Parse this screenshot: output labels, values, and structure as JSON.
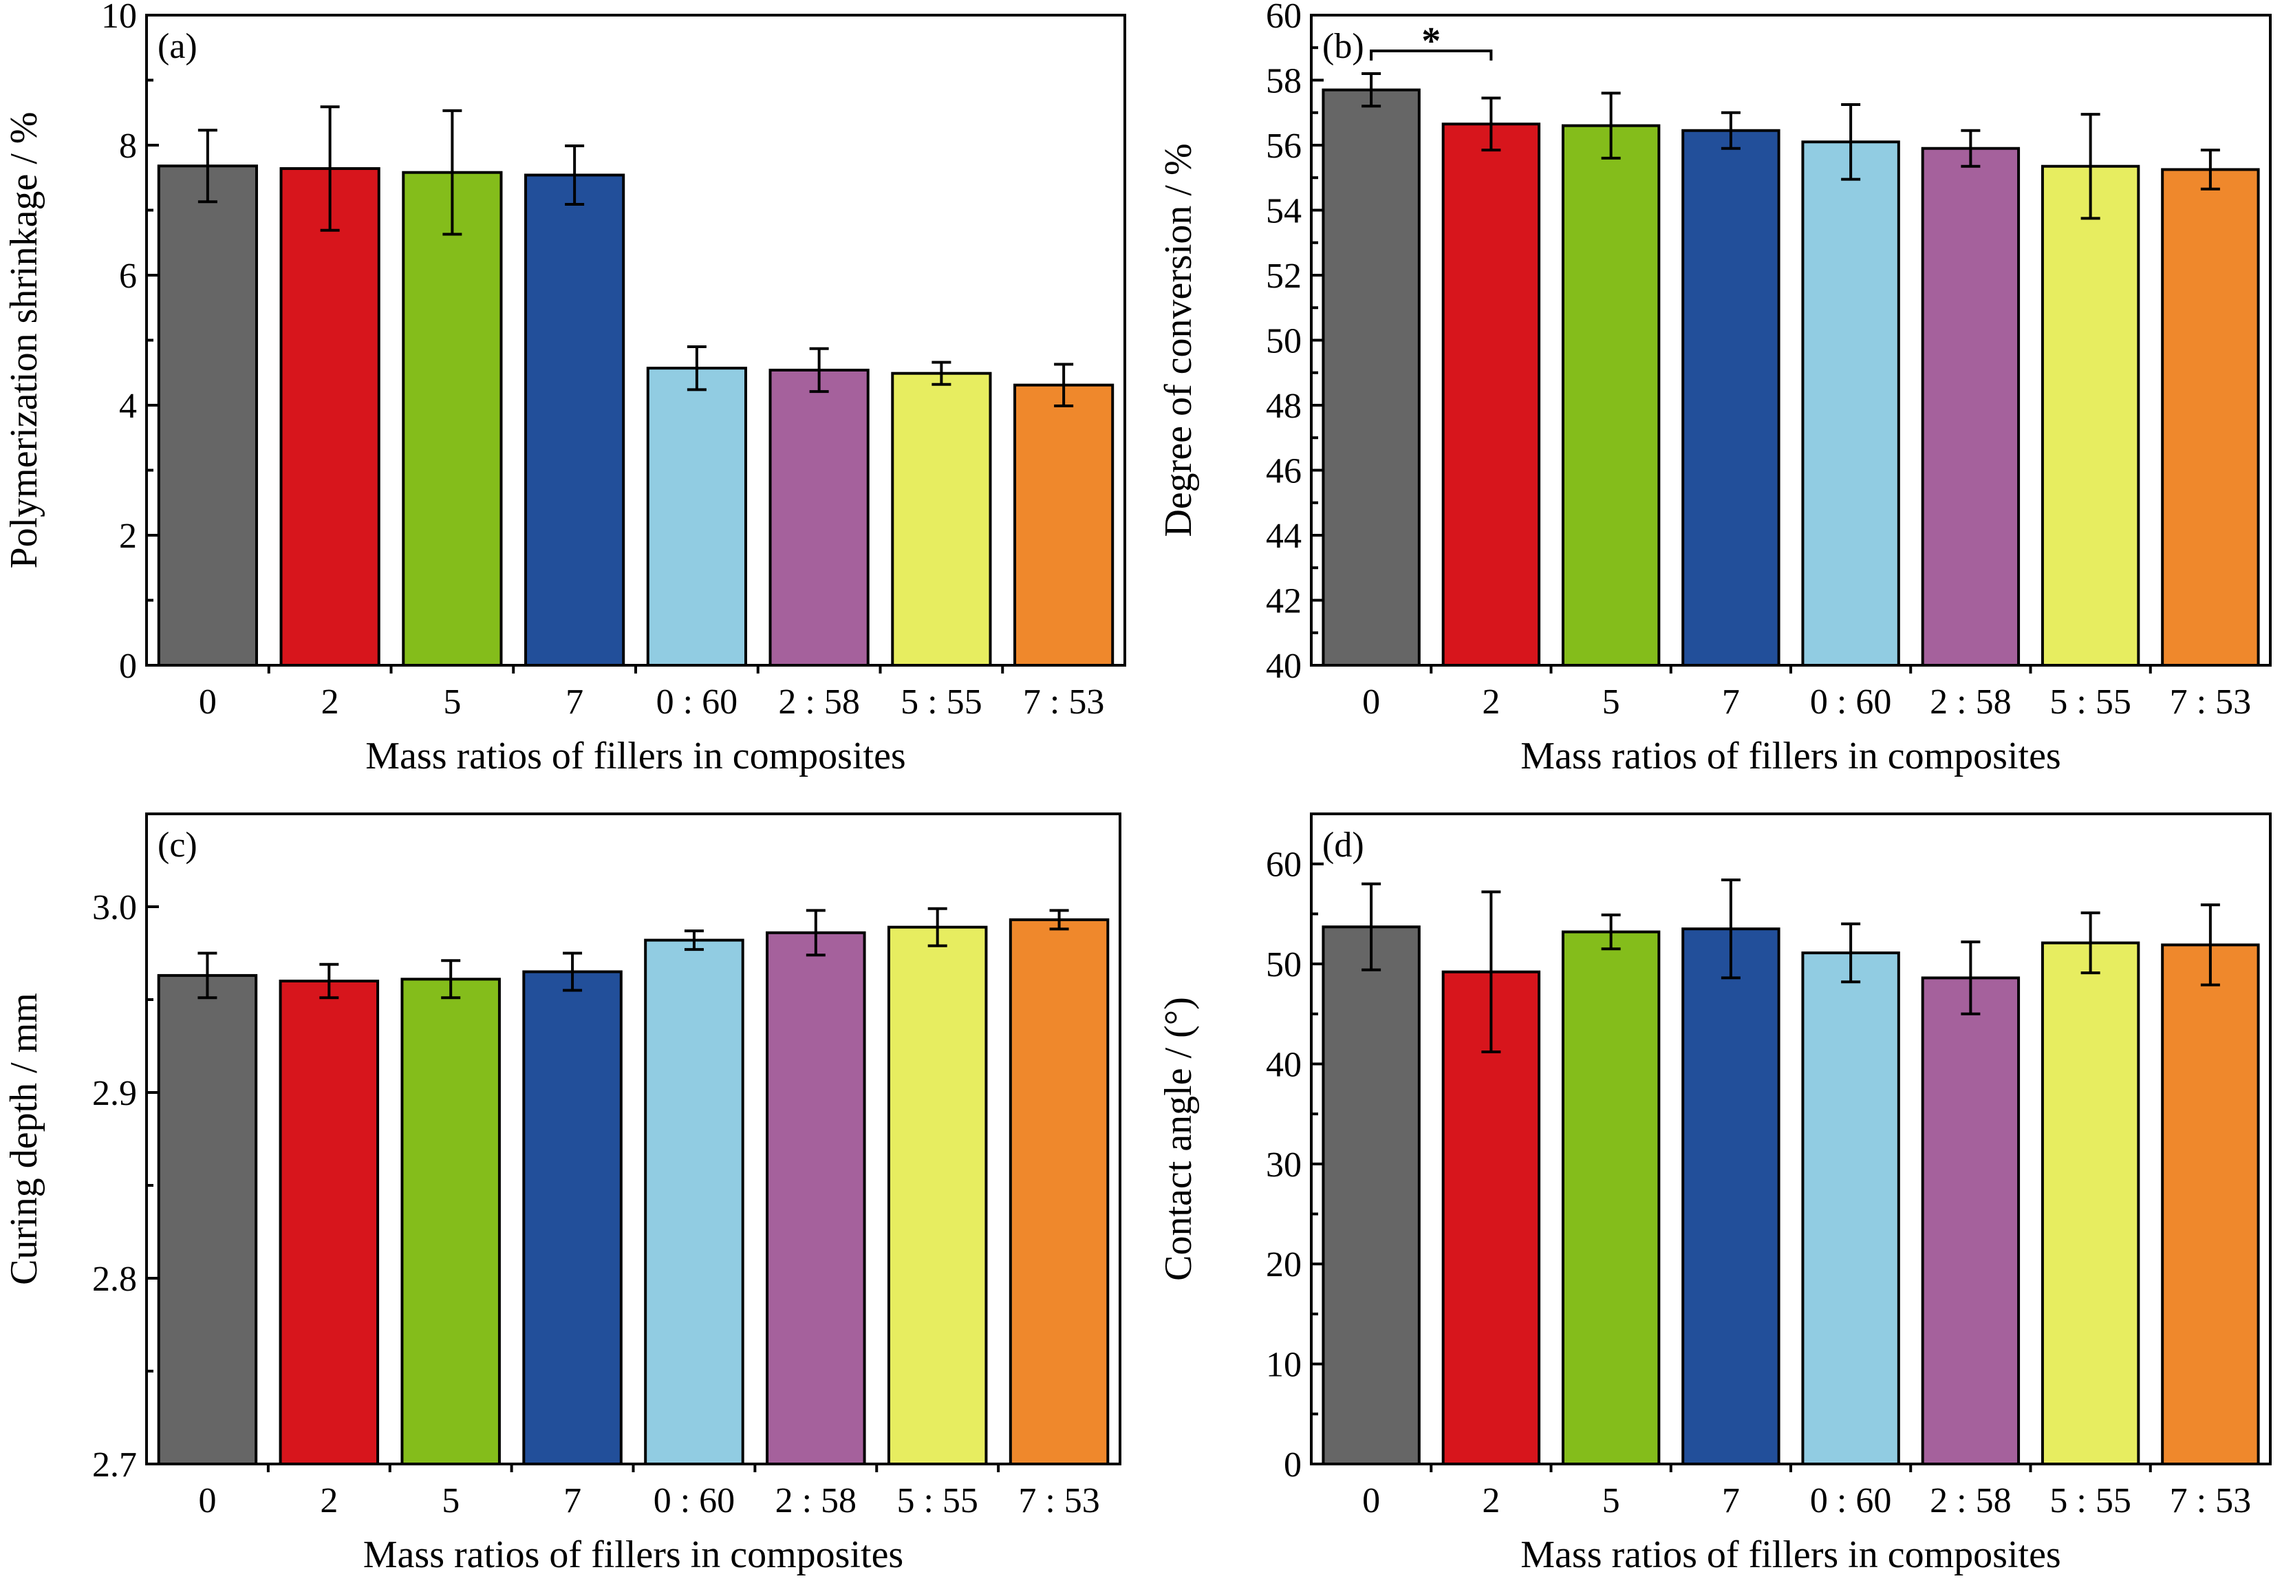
{
  "colors": [
    "#666666",
    "#d7151c",
    "#84bd1b",
    "#224f9a",
    "#91cce2",
    "#a5619c",
    "#e7ed60",
    "#ef882c"
  ],
  "chart_data": [
    {
      "type": "bar",
      "panel_label": "(a)",
      "categories": [
        "0",
        "2",
        "5",
        "7",
        "0 : 60",
        "2 : 58",
        "5 : 55",
        "7 : 53"
      ],
      "values": [
        7.68,
        7.64,
        7.58,
        7.54,
        4.57,
        4.54,
        4.49,
        4.31
      ],
      "errors": [
        0.55,
        0.95,
        0.95,
        0.45,
        0.33,
        0.33,
        0.17,
        0.32
      ],
      "xlabel": "Mass ratios of fillers in composites",
      "ylabel": "Polymerization shrinkage / %",
      "ylim": [
        0,
        10
      ],
      "yticks": [
        0,
        2,
        4,
        6,
        8,
        10
      ],
      "ytick_labels": [
        "0",
        "2",
        "4",
        "6",
        "8",
        "10"
      ],
      "yminor": [
        1,
        3,
        5,
        7,
        9
      ]
    },
    {
      "type": "bar",
      "panel_label": "(b)",
      "categories": [
        "0",
        "2",
        "5",
        "7",
        "0 : 60",
        "2 : 58",
        "5 : 55",
        "7 : 53"
      ],
      "values": [
        57.7,
        56.65,
        56.6,
        56.45,
        56.1,
        55.9,
        55.35,
        55.25
      ],
      "errors": [
        0.5,
        0.8,
        1.0,
        0.55,
        1.15,
        0.55,
        1.6,
        0.6
      ],
      "xlabel": "Mass ratios of fillers in composites",
      "ylabel": "Degree of conversion / %",
      "ylim": [
        40,
        60
      ],
      "yticks": [
        40,
        42,
        44,
        46,
        48,
        50,
        52,
        54,
        56,
        58,
        60
      ],
      "ytick_labels": [
        "40",
        "42",
        "44",
        "46",
        "48",
        "50",
        "52",
        "54",
        "56",
        "58",
        "60"
      ],
      "yminor": [
        41,
        43,
        45,
        47,
        49,
        51,
        53,
        55,
        57,
        59
      ],
      "annotation": {
        "text": "*",
        "from_index": 0,
        "to_index": 1,
        "y": 58.9
      }
    },
    {
      "type": "bar",
      "panel_label": "(c)",
      "categories": [
        "0",
        "2",
        "5",
        "7",
        "0 : 60",
        "2 : 58",
        "5 : 55",
        "7 : 53"
      ],
      "values": [
        2.963,
        2.96,
        2.961,
        2.965,
        2.982,
        2.986,
        2.989,
        2.993
      ],
      "errors": [
        0.012,
        0.009,
        0.01,
        0.01,
        0.005,
        0.012,
        0.01,
        0.005
      ],
      "xlabel": "Mass ratios of fillers in composites",
      "ylabel": "Curing depth / mm",
      "ylim": [
        2.7,
        3.05
      ],
      "yticks": [
        2.7,
        2.8,
        2.9,
        3.0
      ],
      "ytick_labels": [
        "2.7",
        "2.8",
        "2.9",
        "3.0"
      ],
      "yminor": [
        2.75,
        2.85,
        2.95
      ]
    },
    {
      "type": "bar",
      "panel_label": "(d)",
      "categories": [
        "0",
        "2",
        "5",
        "7",
        "0 : 60",
        "2 : 58",
        "5 : 55",
        "7 : 53"
      ],
      "values": [
        53.7,
        49.2,
        53.2,
        53.5,
        51.1,
        48.6,
        52.1,
        51.9
      ],
      "errors": [
        4.3,
        8.0,
        1.7,
        4.9,
        2.9,
        3.6,
        3.0,
        4.0
      ],
      "xlabel": "Mass ratios of fillers in composites",
      "ylabel": "Contact angle / (°)",
      "ylim": [
        0,
        65
      ],
      "yticks": [
        0,
        10,
        20,
        30,
        40,
        50,
        60
      ],
      "ytick_labels": [
        "0",
        "10",
        "20",
        "30",
        "40",
        "50",
        "60"
      ],
      "yminor": [
        5,
        15,
        25,
        35,
        45,
        55
      ]
    }
  ]
}
